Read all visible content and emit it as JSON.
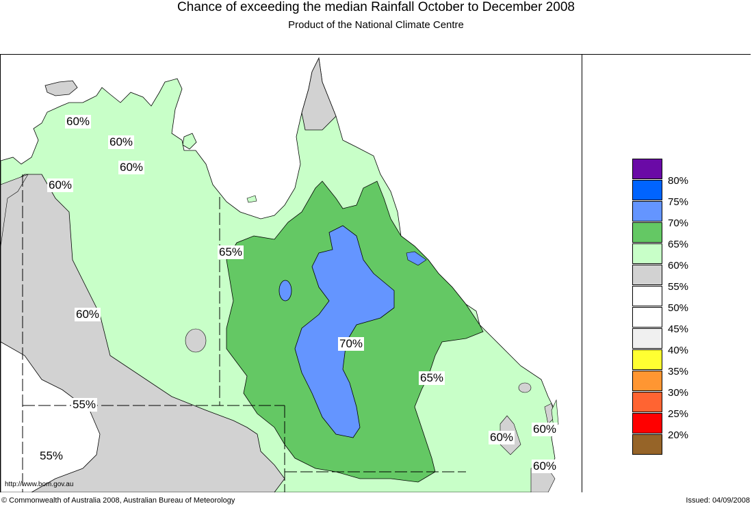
{
  "title": "Chance of exceeding the median Rainfall October to December 2008",
  "subtitle": "Product of the National Climate Centre",
  "legend": [
    {
      "label": "80%",
      "color": "#6a0aa6"
    },
    {
      "label": "75%",
      "color": "#0064ff"
    },
    {
      "label": "70%",
      "color": "#6495ff"
    },
    {
      "label": "65%",
      "color": "#64c864"
    },
    {
      "label": "60%",
      "color": "#c8ffc8"
    },
    {
      "label": "55%",
      "color": "#d2d2d2"
    },
    {
      "label": "50%",
      "color": "#ffffff"
    },
    {
      "label": "45%",
      "color": "#ffffff"
    },
    {
      "label": "40%",
      "color": "#f0f0f0"
    },
    {
      "label": "35%",
      "color": "#ffff32"
    },
    {
      "label": "30%",
      "color": "#ff9632"
    },
    {
      "label": "25%",
      "color": "#ff6432"
    },
    {
      "label": "20%",
      "color": "#ff0000"
    },
    {
      "label": "",
      "color": "#966428"
    }
  ],
  "map_labels": [
    "60%",
    "60%",
    "60%",
    "60%",
    "65%",
    "60%",
    "70%",
    "65%",
    "55%",
    "55%",
    "60%",
    "60%",
    "60%"
  ],
  "source_url": "http://www.bom.gov.au",
  "copyright": "© Commonwealth of Australia 2008, Australian Bureau of Meteorology",
  "issued": "Issued: 04/09/2008"
}
